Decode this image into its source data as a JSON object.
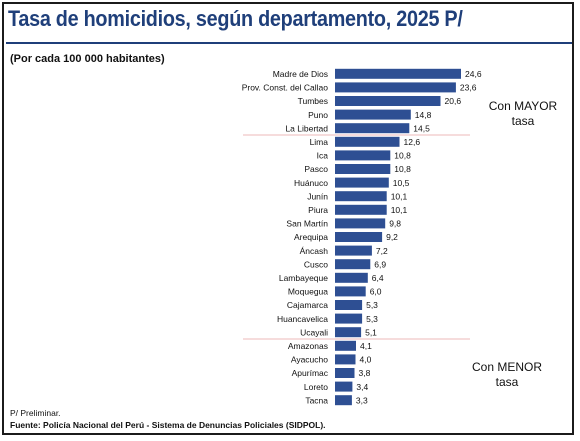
{
  "header": {
    "title": "Tasa de homicidios, según departamento, 2025 P/",
    "subtitle": "(Por cada 100 000 habitantes)"
  },
  "annotations": {
    "high_group": [
      "Con MAYOR",
      "tasa"
    ],
    "low_group": [
      "Con MENOR",
      "tasa"
    ]
  },
  "footer": {
    "note": "P/ Preliminar.",
    "source": "Fuente: Policía Nacional del Perú - Sistema de Denuncias Policiales (SIDPOL)."
  },
  "colors": {
    "bar": "#2e4f93",
    "title": "#1f3f7a",
    "separator": "#e8a0a0"
  },
  "chart_data": {
    "type": "bar",
    "orientation": "horizontal",
    "categories": [
      "Madre de Dios",
      "Prov. Const. del Callao",
      "Tumbes",
      "Puno",
      "La Libertad",
      "Lima",
      "Ica",
      "Pasco",
      "Huánuco",
      "Junín",
      "Piura",
      "San Martín",
      "Arequipa",
      "Áncash",
      "Cusco",
      "Lambayeque",
      "Moquegua",
      "Cajamarca",
      "Huancavelica",
      "Ucayali",
      "Amazonas",
      "Ayacucho",
      "Apurímac",
      "Loreto",
      "Tacna"
    ],
    "values": [
      24.6,
      23.6,
      20.6,
      14.8,
      14.5,
      12.6,
      10.8,
      10.8,
      10.5,
      10.1,
      10.1,
      9.8,
      9.2,
      7.2,
      6.9,
      6.4,
      6.0,
      5.3,
      5.3,
      5.1,
      4.1,
      4.0,
      3.8,
      3.4,
      3.3
    ],
    "value_labels": [
      "24,6",
      "23,6",
      "20,6",
      "14,8",
      "14,5",
      "12,6",
      "10,8",
      "10,8",
      "10,5",
      "10,1",
      "10,1",
      "9,8",
      "9,2",
      "7,2",
      "6,9",
      "6,4",
      "6,0",
      "5,3",
      "5,3",
      "5,1",
      "4,1",
      "4,0",
      "3,8",
      "3,4",
      "3,3"
    ],
    "title": "Tasa de homicidios, según departamento, 2025 P/",
    "subtitle": "(Por cada 100 000 habitantes)",
    "xlabel": "",
    "ylabel": "",
    "xlim": [
      0,
      24.6
    ],
    "grid": false,
    "legend": "none",
    "group_separators_after": [
      "La Libertad",
      "Ucayali"
    ]
  }
}
